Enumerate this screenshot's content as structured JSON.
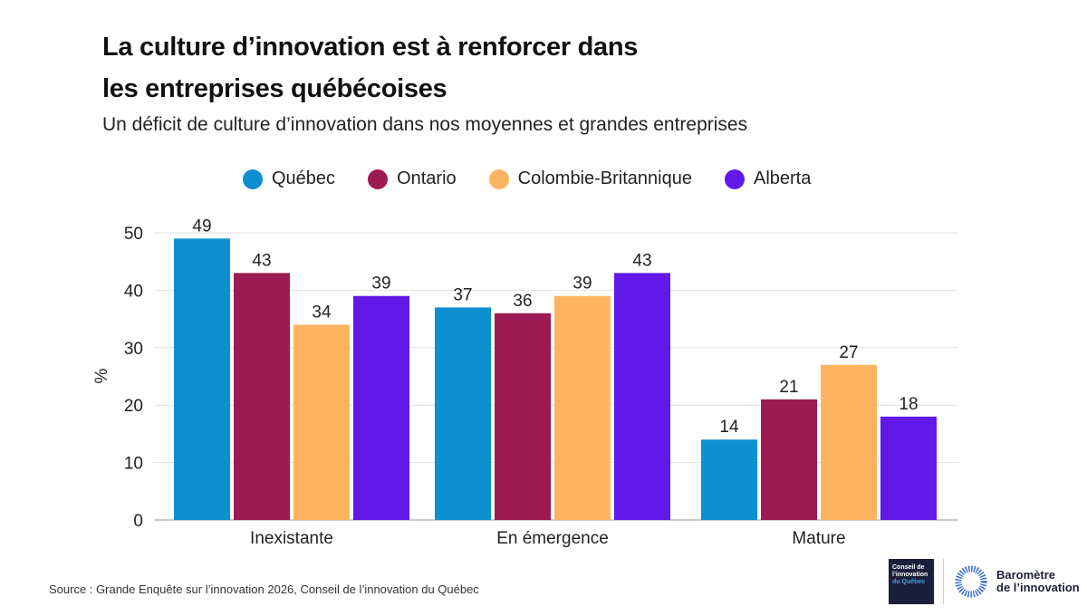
{
  "title_line1": "La culture d’innovation est à renforcer dans",
  "title_line2": "les entreprises québécoises",
  "subtitle": "Un déficit de culture d’innovation dans nos moyennes et grandes entreprises",
  "source": "Source : Grande Enquête sur l’innovation 2026, Conseil de l’innovation du Québec",
  "logos": {
    "conseil": "Conseil de l’innovation du Québec",
    "barometre_line1": "Baromètre",
    "barometre_line2": "de l’innovation"
  },
  "chart_data": {
    "type": "bar",
    "categories": [
      "Inexistante",
      "En émergence",
      "Mature"
    ],
    "series": [
      {
        "name": "Québec",
        "color": "#0e8fd0",
        "values": [
          49,
          37,
          14
        ]
      },
      {
        "name": "Ontario",
        "color": "#9b1b52",
        "values": [
          43,
          36,
          21
        ]
      },
      {
        "name": "Colombie-Britannique",
        "color": "#fdb35f",
        "values": [
          34,
          39,
          27
        ]
      },
      {
        "name": "Alberta",
        "color": "#6219e8",
        "values": [
          39,
          43,
          18
        ]
      }
    ],
    "ylabel": "%",
    "ylim": [
      0,
      50
    ],
    "yticks": [
      0,
      10,
      20,
      30,
      40,
      50
    ],
    "grid": true,
    "legend": "top",
    "data_labels": true
  }
}
